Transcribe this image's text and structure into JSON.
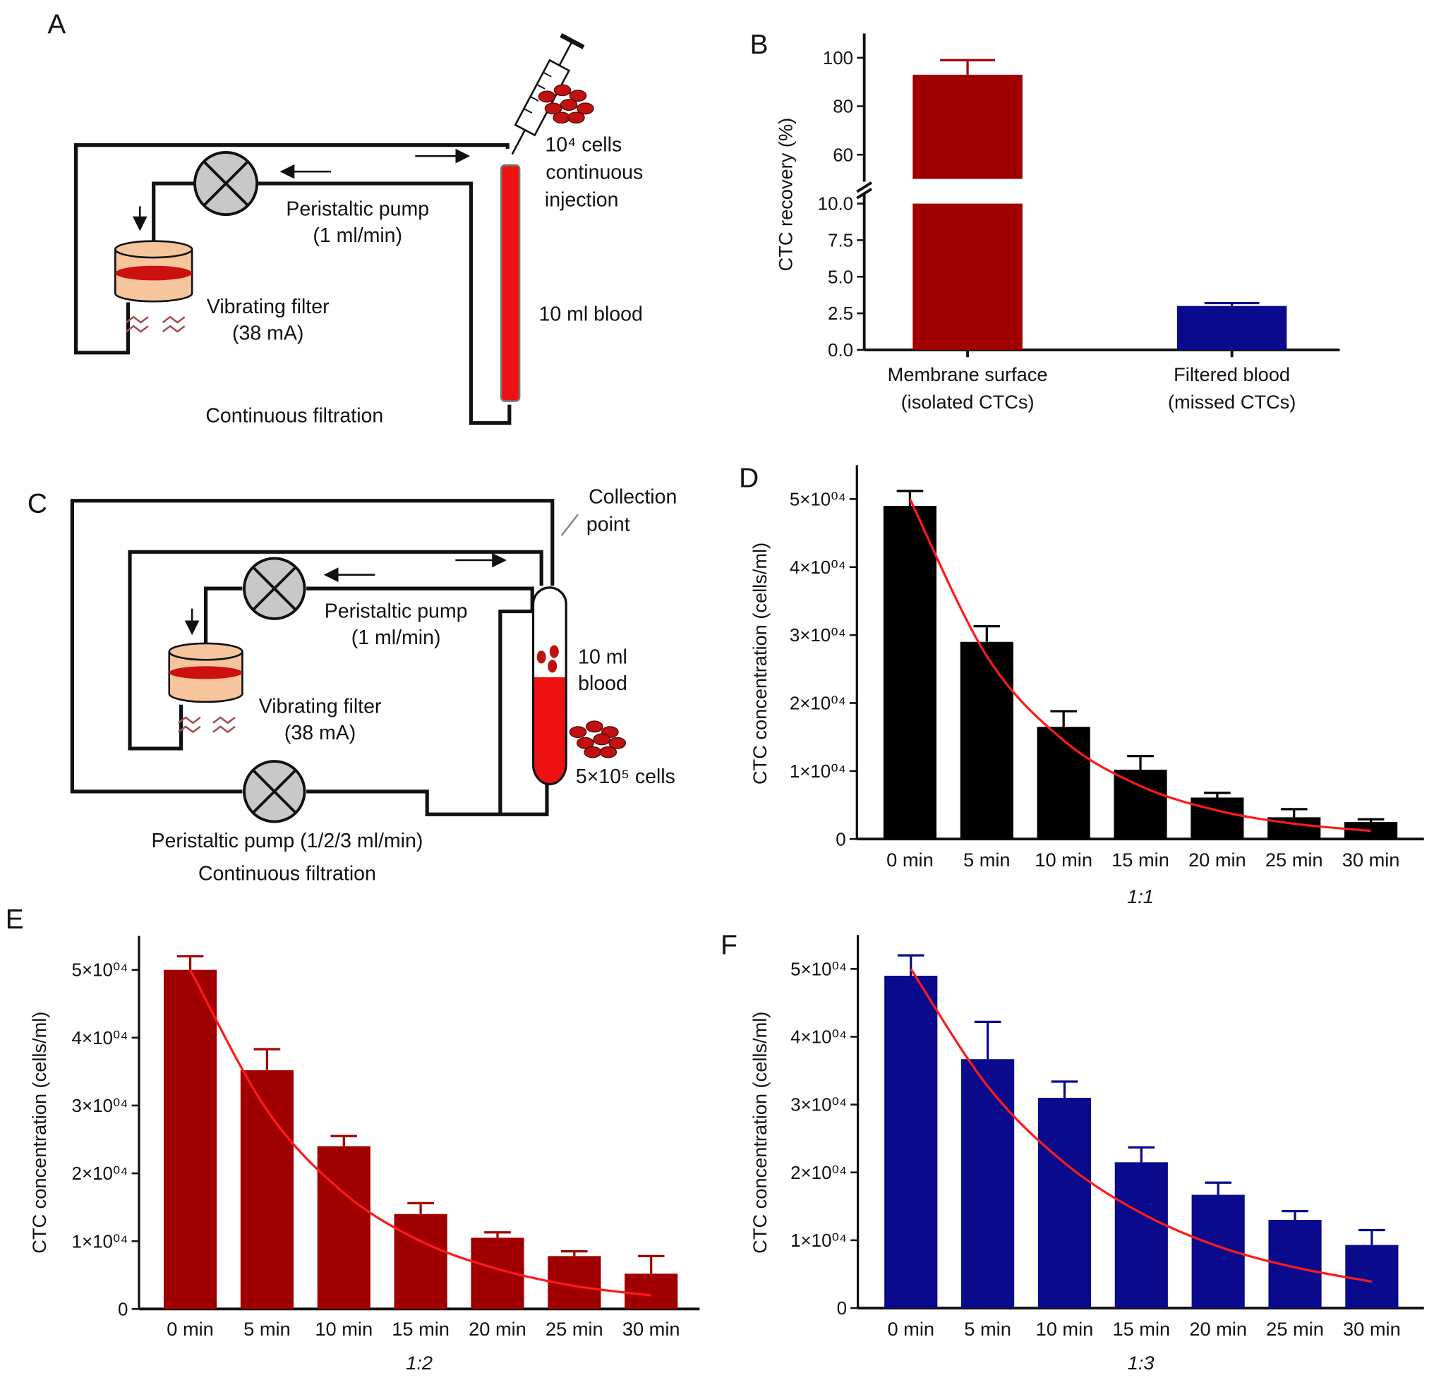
{
  "panel_labels": [
    "A",
    "B",
    "C",
    "D",
    "E",
    "F"
  ],
  "diagrams": {
    "A": {
      "cells": "10⁴ cells",
      "cells_2": "continuous",
      "cells_3": "injection",
      "pump": "Peristaltic pump",
      "pump_rate": "(1 ml/min)",
      "filter": "Vibrating filter",
      "filter_current": "(38 mA)",
      "blood": "10 ml blood",
      "caption": "Continuous filtration"
    },
    "C": {
      "collection": "Collection",
      "collection_2": "point",
      "pump": "Peristaltic pump",
      "pump_rate": "(1 ml/min)",
      "blood": "10 ml",
      "blood_2": "blood",
      "filter": "Vibrating filter",
      "filter_current": "(38 mA)",
      "cells": "5×10⁵ cells",
      "pump2": "Peristaltic pump (1/2/3 ml/min)",
      "caption": "Continuous filtration"
    }
  },
  "chart_data": [
    {
      "type": "bar",
      "ylabel": "CTC recovery (%)",
      "categories": [
        [
          "Membrane surface",
          "(isolated CTCs)"
        ],
        [
          "Filtered blood",
          "(missed CTCs)"
        ]
      ],
      "values": [
        93,
        3.0
      ],
      "errors": [
        6,
        0.2
      ],
      "colors": [
        "#a00000",
        "#0a0a8c"
      ],
      "ylim": [
        0,
        110
      ],
      "ybreak": [
        10,
        50
      ],
      "yticks": [
        {
          "value": 0,
          "label": "0.0"
        },
        {
          "value": 2.5,
          "label": "2.5"
        },
        {
          "value": 5,
          "label": "5.0"
        },
        {
          "value": 7.5,
          "label": "7.5"
        },
        {
          "value": 10,
          "label": "10.0"
        },
        60,
        80,
        100
      ]
    },
    {
      "type": "bar",
      "ylabel": "CTC concentration (cells/ml)",
      "xlabel": "1:1",
      "categories": [
        "0 min",
        "5 min",
        "10 min",
        "15 min",
        "20 min",
        "25 min",
        "30 min"
      ],
      "values": [
        49000,
        29000,
        16500,
        10200,
        6100,
        3200,
        2500
      ],
      "errors": [
        2200,
        2300,
        2300,
        2000,
        700,
        1200,
        400
      ],
      "color": "#000000",
      "fit_values": [
        50000,
        26900,
        14500,
        7800,
        4200,
        2250,
        1200
      ],
      "fit_color": "#ff1a1a",
      "ylim": [
        0,
        55000
      ],
      "yticks": [
        0,
        {
          "value": 10000,
          "label": "1×10⁰⁴"
        },
        {
          "value": 20000,
          "label": "2×10⁰⁴"
        },
        {
          "value": 30000,
          "label": "3×10⁰⁴"
        },
        {
          "value": 40000,
          "label": "4×10⁰⁴"
        },
        {
          "value": 50000,
          "label": "5×10⁰⁴"
        }
      ]
    },
    {
      "type": "bar",
      "ylabel": "CTC concentration (cells/ml)",
      "xlabel": "1:2",
      "categories": [
        "0 min",
        "5 min",
        "10 min",
        "15 min",
        "20 min",
        "25 min",
        "30 min"
      ],
      "values": [
        50000,
        35200,
        24000,
        14000,
        10500,
        7800,
        5200
      ],
      "errors": [
        2000,
        3100,
        1500,
        1600,
        800,
        700,
        2600
      ],
      "color": "#a00000",
      "fit_values": [
        50000,
        29300,
        17100,
        10000,
        5900,
        3400,
        2000
      ],
      "fit_color": "#ff1a1a",
      "ylim": [
        0,
        55000
      ],
      "yticks": [
        0,
        {
          "value": 10000,
          "label": "1×10⁰⁴"
        },
        {
          "value": 20000,
          "label": "2×10⁰⁴"
        },
        {
          "value": 30000,
          "label": "3×10⁰⁴"
        },
        {
          "value": 40000,
          "label": "4×10⁰⁴"
        },
        {
          "value": 50000,
          "label": "5×10⁰⁴"
        }
      ]
    },
    {
      "type": "bar",
      "ylabel": "CTC concentration (cells/ml)",
      "xlabel": "1:3",
      "categories": [
        "0 min",
        "5 min",
        "10 min",
        "15 min",
        "20 min",
        "25 min",
        "30 min"
      ],
      "values": [
        49000,
        36700,
        31000,
        21500,
        16700,
        13000,
        9300
      ],
      "errors": [
        3000,
        5500,
        2400,
        2200,
        1800,
        1300,
        2200
      ],
      "color": "#0a0a8c",
      "fit_values": [
        50000,
        32700,
        21400,
        14000,
        9100,
        6000,
        3900
      ],
      "fit_color": "#ff1a1a",
      "ylim": [
        0,
        55000
      ],
      "yticks": [
        0,
        {
          "value": 10000,
          "label": "1×10⁰⁴"
        },
        {
          "value": 20000,
          "label": "2×10⁰⁴"
        },
        {
          "value": 30000,
          "label": "3×10⁰⁴"
        },
        {
          "value": 40000,
          "label": "4×10⁰⁴"
        },
        {
          "value": 50000,
          "label": "5×10⁰⁴"
        }
      ]
    }
  ]
}
